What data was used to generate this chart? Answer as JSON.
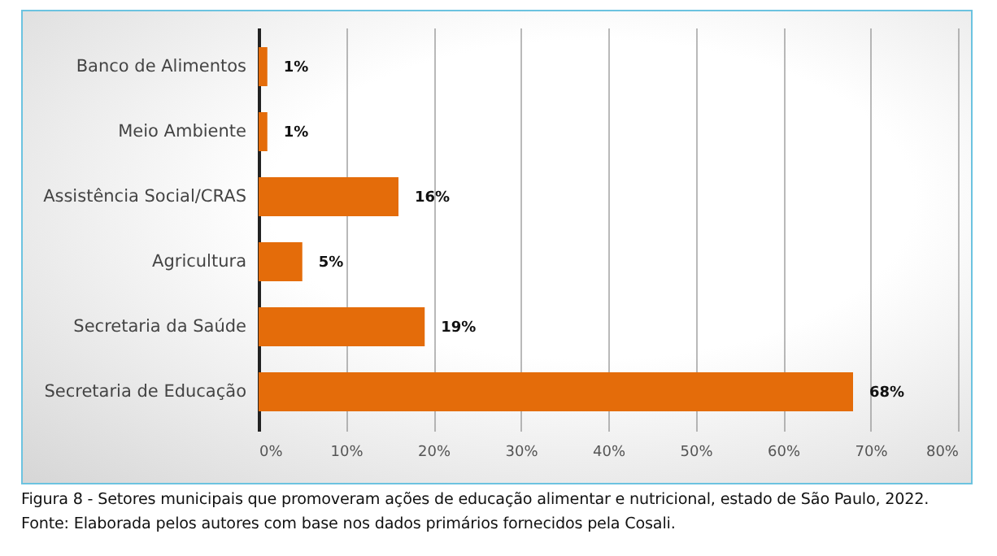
{
  "chart_data": {
    "type": "bar",
    "orientation": "horizontal",
    "categories": [
      "Banco de Alimentos",
      "Meio Ambiente",
      "Assistência Social/CRAS",
      "Agricultura",
      "Secretaria da Saúde",
      "Secretaria de Educação"
    ],
    "values": [
      1,
      1,
      16,
      5,
      19,
      68
    ],
    "color": "#e46c0a",
    "data_labels": true,
    "value_labels": [
      "1%",
      "1%",
      "16%",
      "5%",
      "19%",
      "68%"
    ],
    "xlim": [
      0,
      80
    ],
    "xticks": [
      {
        "value": 0,
        "label": "0%"
      },
      {
        "value": 10,
        "label": "10%"
      },
      {
        "value": 20,
        "label": "20%"
      },
      {
        "value": 30,
        "label": "30%"
      },
      {
        "value": 40,
        "label": "40%"
      },
      {
        "value": 50,
        "label": "50%"
      },
      {
        "value": 60,
        "label": "60%"
      },
      {
        "value": 70,
        "label": "70%"
      },
      {
        "value": 80,
        "label": "80%"
      }
    ],
    "grid": "x",
    "annotations": [
      "Figura 8 - Setores municipais que promoveram ações de educação alimentar e nutricional, estado de São Paulo, 2022.",
      "Fonte: Elaborada pelos autores com base nos dados primários fornecidos pela Cosali."
    ]
  }
}
